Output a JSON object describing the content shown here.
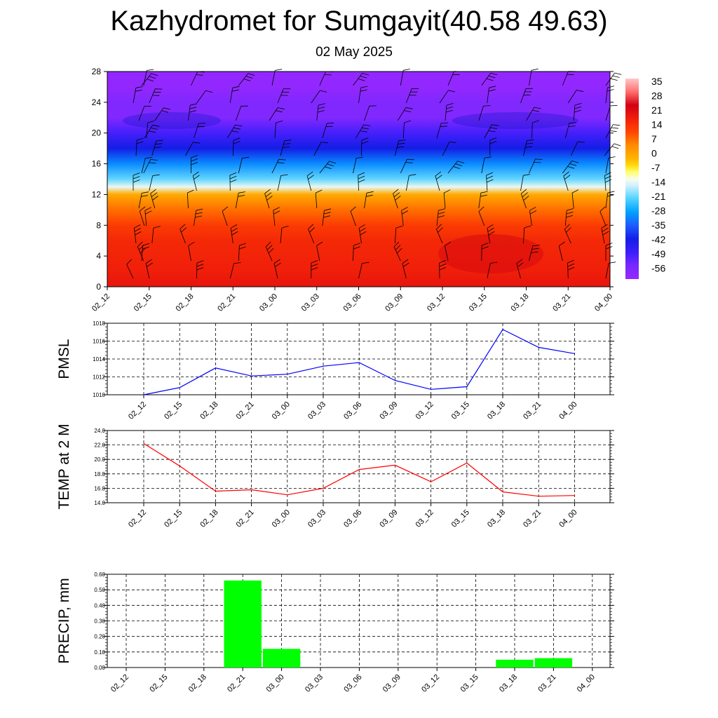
{
  "title": "Kazhydromet for Sumgayit(40.58 49.63)",
  "subtitle": "02 May 2025",
  "colors": {
    "pmsl_line": "#0000ff",
    "temp_line": "#ff0000",
    "precip_bar": "#00ff00"
  },
  "chart_data": [
    {
      "type": "heatmap",
      "title": "",
      "xlabel": "",
      "ylabel": "",
      "x": [
        "02_12",
        "02_15",
        "02_18",
        "02_21",
        "03_00",
        "03_03",
        "03_06",
        "03_09",
        "03_12",
        "03_15",
        "03_18",
        "03_21",
        "04_00"
      ],
      "ylim": [
        0,
        28
      ],
      "yticks": [
        0,
        4,
        8,
        12,
        16,
        20,
        24,
        28
      ],
      "colorbar": {
        "labels": [
          "35",
          "28",
          "21",
          "14",
          "7",
          "0",
          "-7",
          "-14",
          "-21",
          "-28",
          "-35",
          "-42",
          "-49",
          "-56"
        ],
        "range": [
          -63,
          42
        ]
      },
      "levels": [
        {
          "y": 0,
          "t": 23
        },
        {
          "y": 2,
          "t": 21
        },
        {
          "y": 4,
          "t": 20
        },
        {
          "y": 6,
          "t": 19
        },
        {
          "y": 8,
          "t": 16
        },
        {
          "y": 10,
          "t": 10
        },
        {
          "y": 12,
          "t": 2
        },
        {
          "y": 13,
          "t": -12
        },
        {
          "y": 14,
          "t": -20
        },
        {
          "y": 16,
          "t": -30
        },
        {
          "y": 18,
          "t": -42
        },
        {
          "y": 20,
          "t": -50
        },
        {
          "y": 22,
          "t": -58
        },
        {
          "y": 24,
          "t": -58
        },
        {
          "y": 26,
          "t": -62
        },
        {
          "y": 28,
          "t": -62
        }
      ],
      "overlay": "wind barbs",
      "grid": false
    },
    {
      "type": "line",
      "ylabel": "PMSL",
      "x": [
        "02_12",
        "02_15",
        "02_18",
        "02_21",
        "03_00",
        "03_03",
        "03_06",
        "03_09",
        "03_12",
        "03_15",
        "03_18",
        "03_21",
        "04_00"
      ],
      "series": [
        {
          "values": [
            1010.0,
            1010.8,
            1013.0,
            1012.1,
            1012.3,
            1013.2,
            1013.6,
            1011.6,
            1010.6,
            1010.9,
            1017.3,
            1015.3,
            1014.6
          ]
        }
      ],
      "ylim": [
        1010,
        1018
      ],
      "yticks": [
        "1010",
        "1012",
        "1014",
        "1016",
        "1018"
      ],
      "grid": true
    },
    {
      "type": "line",
      "ylabel": "TEMP at 2 M",
      "x": [
        "02_12",
        "02_15",
        "02_18",
        "02_21",
        "03_00",
        "03_03",
        "03_06",
        "03_09",
        "03_12",
        "03_15",
        "03_18",
        "03_21",
        "04_00"
      ],
      "series": [
        {
          "values": [
            22.2,
            19.1,
            15.6,
            15.8,
            15.1,
            16.0,
            18.6,
            19.2,
            16.9,
            19.5,
            15.5,
            14.9,
            15.0
          ]
        }
      ],
      "ylim": [
        14,
        24
      ],
      "yticks": [
        "14.0",
        "16.0",
        "18.0",
        "20.0",
        "22.0",
        "24.0"
      ],
      "grid": true
    },
    {
      "type": "bar",
      "ylabel": "PRECIP, mm",
      "categories": [
        "02_12",
        "02_15",
        "02_18",
        "02_21",
        "03_00",
        "03_03",
        "03_06",
        "03_09",
        "03_12",
        "03_15",
        "03_18",
        "03_21",
        "04_00"
      ],
      "values": [
        0,
        0,
        0,
        0.56,
        0.12,
        0,
        0,
        0,
        0,
        0,
        0.05,
        0.06,
        0
      ],
      "ylim": [
        0,
        0.6
      ],
      "yticks": [
        "0.00",
        "0.10",
        "0.20",
        "0.30",
        "0.40",
        "0.50",
        "0.60"
      ],
      "grid": true
    }
  ]
}
